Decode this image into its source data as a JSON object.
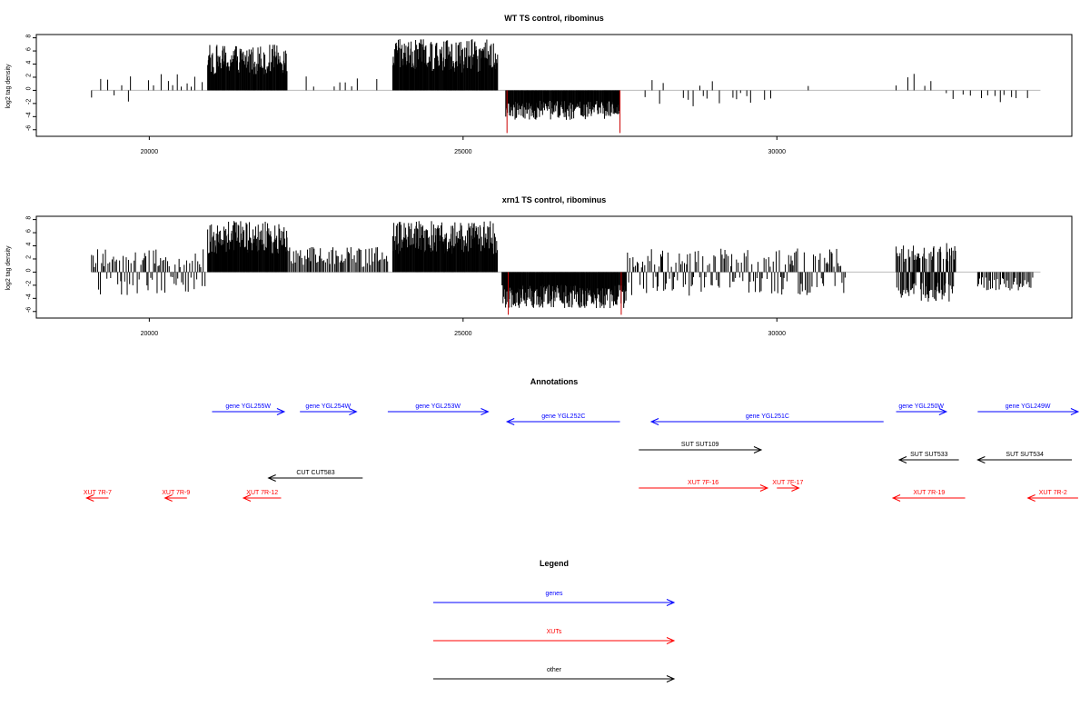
{
  "colors": {
    "gene": "#0000ff",
    "xut": "#ff0000",
    "other": "#000000",
    "signal": "#000000",
    "peak": "#cc0000",
    "baseline": "#bbbbbb"
  },
  "chart_data": [
    {
      "type": "bar",
      "title": "WT TS control, ribominus",
      "ylabel": "log2 tag density",
      "xlim": [
        18200,
        34700
      ],
      "ylim": [
        -7,
        8.5
      ],
      "y_ticks": [
        -6,
        -4,
        -2,
        0,
        2,
        4,
        6,
        8
      ],
      "x_ticks": [
        20000,
        25000,
        30000
      ],
      "segments": [
        {
          "x0": 19080,
          "x1": 19700,
          "kind": "sparse",
          "dir": 0,
          "amp": 3
        },
        {
          "x0": 19700,
          "x1": 20900,
          "kind": "sparse",
          "dir": 1,
          "amp": 2.5
        },
        {
          "x0": 20930,
          "x1": 22200,
          "kind": "dense",
          "dir": 1,
          "amp": 7
        },
        {
          "x0": 22500,
          "x1": 23800,
          "kind": "sparse",
          "dir": 1,
          "amp": 2.2
        },
        {
          "x0": 23880,
          "x1": 25550,
          "kind": "dense",
          "dir": 1,
          "amp": 7.8
        },
        {
          "x0": 25680,
          "x1": 27500,
          "kind": "dense",
          "dir": -1,
          "amp": 4.5
        },
        {
          "x0": 27900,
          "x1": 29300,
          "kind": "sparse",
          "dir": 0,
          "amp": 2.5
        },
        {
          "x0": 29300,
          "x1": 30000,
          "kind": "sparse",
          "dir": -1,
          "amp": 2
        },
        {
          "x0": 30500,
          "x1": 30550,
          "kind": "sparse",
          "dir": 1,
          "amp": 2.5
        },
        {
          "x0": 31900,
          "x1": 32700,
          "kind": "sparse",
          "dir": 1,
          "amp": 3.2
        },
        {
          "x0": 32700,
          "x1": 34000,
          "kind": "sparse",
          "dir": -1,
          "amp": 1.8
        }
      ],
      "peaks": [
        {
          "x": 25700,
          "y": -6.5
        },
        {
          "x": 27500,
          "y": -6.5
        }
      ]
    },
    {
      "type": "bar",
      "title": "xrn1 TS control, ribominus",
      "ylabel": "log2 tag density",
      "xlim": [
        18200,
        34700
      ],
      "ylim": [
        -7,
        8.5
      ],
      "y_ticks": [
        -6,
        -4,
        -2,
        0,
        2,
        4,
        6,
        8
      ],
      "x_ticks": [
        20000,
        25000,
        30000
      ],
      "segments": [
        {
          "x0": 19080,
          "x1": 20900,
          "kind": "medium",
          "dir": 0,
          "amp": 3.5
        },
        {
          "x0": 20930,
          "x1": 22200,
          "kind": "dense",
          "dir": 1,
          "amp": 7.8
        },
        {
          "x0": 22200,
          "x1": 23800,
          "kind": "medium",
          "dir": 1,
          "amp": 3.8
        },
        {
          "x0": 23880,
          "x1": 25550,
          "kind": "dense",
          "dir": 1,
          "amp": 7.8
        },
        {
          "x0": 25620,
          "x1": 27600,
          "kind": "dense",
          "dir": -1,
          "amp": 5.5
        },
        {
          "x0": 27600,
          "x1": 31100,
          "kind": "medium",
          "dir": 0,
          "amp": 3.6
        },
        {
          "x0": 31900,
          "x1": 32850,
          "kind": "dense",
          "dir": 0,
          "amp": 4.5
        },
        {
          "x0": 33200,
          "x1": 34100,
          "kind": "medium",
          "dir": -1,
          "amp": 2.8
        }
      ],
      "peaks": [
        {
          "x": 25720,
          "y": -6.5
        },
        {
          "x": 27520,
          "y": -6.5
        }
      ]
    }
  ],
  "annotations": {
    "title": "Annotations",
    "items": [
      {
        "label": "gene YGL255W",
        "type": "gene",
        "x0": 21000,
        "x1": 22150,
        "dir": "right",
        "row": 1
      },
      {
        "label": "gene YGL254W",
        "type": "gene",
        "x0": 22400,
        "x1": 23300,
        "dir": "right",
        "row": 1
      },
      {
        "label": "gene YGL253W",
        "type": "gene",
        "x0": 23800,
        "x1": 25400,
        "dir": "right",
        "row": 1
      },
      {
        "label": "gene YGL252C",
        "type": "gene",
        "x0": 25700,
        "x1": 27500,
        "dir": "left",
        "row": 2
      },
      {
        "label": "gene YGL251C",
        "type": "gene",
        "x0": 28000,
        "x1": 31700,
        "dir": "left",
        "row": 2
      },
      {
        "label": "gene YGL250W",
        "type": "gene",
        "x0": 31900,
        "x1": 32700,
        "dir": "right",
        "row": 1
      },
      {
        "label": "gene YGL249W",
        "type": "gene",
        "x0": 33200,
        "x1": 34800,
        "dir": "right",
        "row": 1
      },
      {
        "label": "SUT SUT109",
        "type": "other",
        "x0": 27800,
        "x1": 29750,
        "dir": "right",
        "row": 3
      },
      {
        "label": "SUT SUT533",
        "type": "other",
        "x0": 31950,
        "x1": 32900,
        "dir": "left",
        "row": 4
      },
      {
        "label": "SUT SUT534",
        "type": "other",
        "x0": 33200,
        "x1": 34700,
        "dir": "left",
        "row": 4
      },
      {
        "label": "CUT CUT583",
        "type": "other",
        "x0": 21900,
        "x1": 23400,
        "dir": "left",
        "row": 5
      },
      {
        "label": "XUT 7R-7",
        "type": "xut",
        "x0": 19000,
        "x1": 19350,
        "dir": "left",
        "row": 6
      },
      {
        "label": "XUT 7R-9",
        "type": "xut",
        "x0": 20250,
        "x1": 20600,
        "dir": "left",
        "row": 6
      },
      {
        "label": "XUT 7R-12",
        "type": "xut",
        "x0": 21500,
        "x1": 22100,
        "dir": "left",
        "row": 6
      },
      {
        "label": "XUT 7F-16",
        "type": "xut",
        "x0": 27800,
        "x1": 29850,
        "dir": "right",
        "row": 7
      },
      {
        "label": "XUT 7F-17",
        "type": "xut",
        "x0": 30000,
        "x1": 30350,
        "dir": "right",
        "row": 7
      },
      {
        "label": "XUT 7R-19",
        "type": "xut",
        "x0": 31850,
        "x1": 33000,
        "dir": "left",
        "row": 8
      },
      {
        "label": "XUT 7R-2",
        "type": "xut",
        "x0": 34000,
        "x1": 34800,
        "dir": "left",
        "row": 8
      }
    ]
  },
  "legend": {
    "title": "Legend",
    "items": [
      {
        "label": "genes",
        "type": "gene"
      },
      {
        "label": "XUTs",
        "type": "xut"
      },
      {
        "label": "other",
        "type": "other"
      }
    ]
  }
}
